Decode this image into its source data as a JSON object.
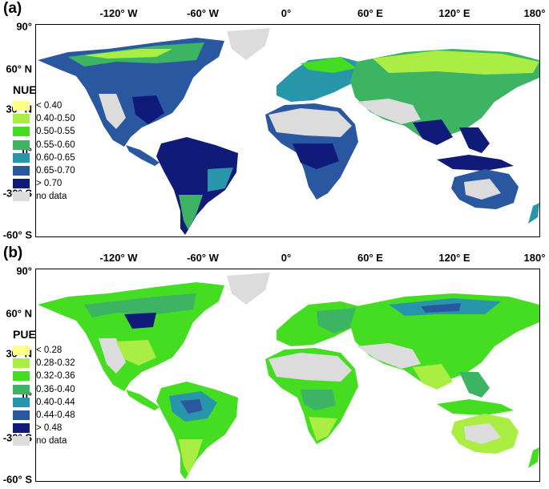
{
  "panels": [
    {
      "letter": "(a)",
      "legend_title": "NUE",
      "legend": [
        {
          "label": "< 0.40",
          "color": "#ffff88"
        },
        {
          "label": "0.40-0.50",
          "color": "#aaee44"
        },
        {
          "label": "0.50-0.55",
          "color": "#44dd22"
        },
        {
          "label": "0.55-0.60",
          "color": "#3cb464"
        },
        {
          "label": "0.60-0.65",
          "color": "#2896aa"
        },
        {
          "label": "0.65-0.70",
          "color": "#2a58a0"
        },
        {
          "label": "> 0.70",
          "color": "#101a78"
        },
        {
          "label": "no data",
          "color": "#dcdcdc"
        }
      ]
    },
    {
      "letter": "(b)",
      "legend_title": "PUE",
      "legend": [
        {
          "label": "< 0.28",
          "color": "#ffff88"
        },
        {
          "label": "0.28-0.32",
          "color": "#aaee44"
        },
        {
          "label": "0.32-0.36",
          "color": "#44dd22"
        },
        {
          "label": "0.36-0.40",
          "color": "#3cb464"
        },
        {
          "label": "0.40-0.44",
          "color": "#2896aa"
        },
        {
          "label": "0.44-0.48",
          "color": "#2a58a0"
        },
        {
          "label": "> 0.48",
          "color": "#101a78"
        },
        {
          "label": "no data",
          "color": "#dcdcdc"
        }
      ]
    }
  ],
  "axis": {
    "lon_labels": [
      "-120° W",
      "-60° W",
      "0°",
      "60° E",
      "120° E",
      "180°"
    ],
    "lat_labels": [
      "90°",
      "60° N",
      "30° N",
      "0°",
      "-30° S",
      "-60° S"
    ]
  }
}
